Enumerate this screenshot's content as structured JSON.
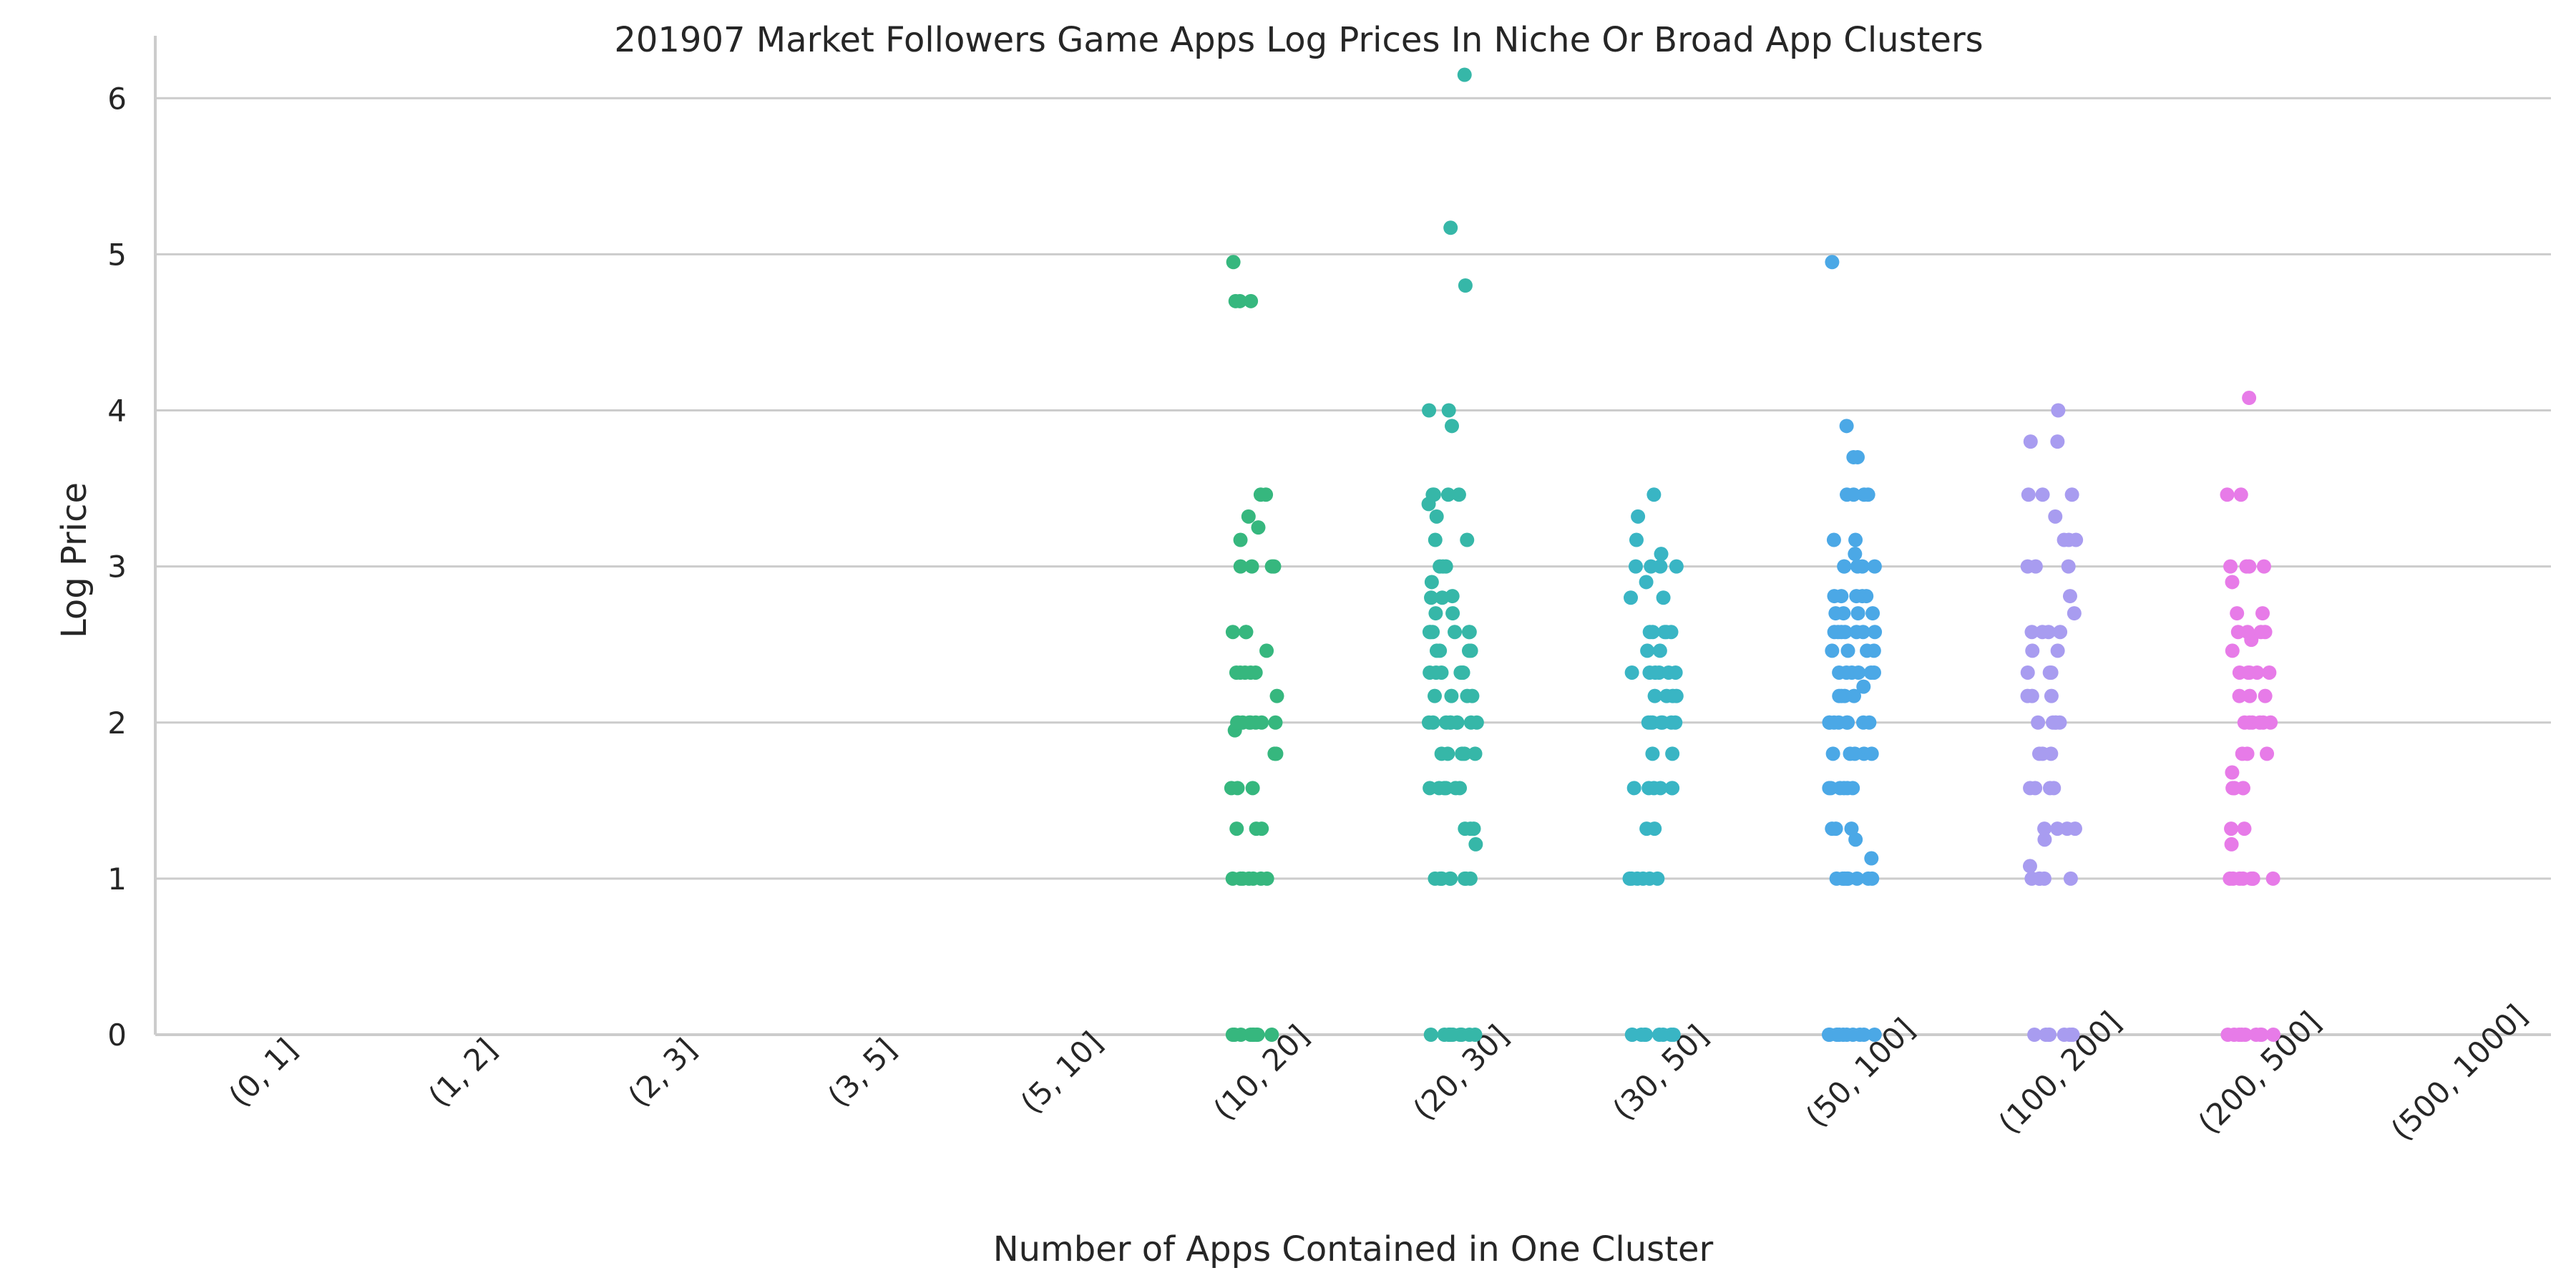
{
  "chart_data": {
    "type": "scatter",
    "title": "201907 Market Followers Game Apps Log Prices In Niche Or Broad App Clusters",
    "xlabel": "Number of Apps Contained in One Cluster",
    "ylabel": "Log Price",
    "categories": [
      "(0, 1]",
      "(1, 2]",
      "(2, 3]",
      "(3, 5]",
      "(5, 10]",
      "(10, 20]",
      "(20, 30]",
      "(30, 50]",
      "(50, 100]",
      "(100, 200]",
      "(200, 500]",
      "(500, 1000]"
    ],
    "ylim": [
      0,
      6.4
    ],
    "yticks": [
      0,
      1,
      2,
      3,
      4,
      5,
      6
    ],
    "grid": "horizontal",
    "series": [
      {
        "category": "(10, 20]",
        "color": "#36b77e",
        "values": [
          0,
          0,
          0,
          0,
          0,
          0,
          0,
          0,
          0,
          1,
          1,
          1,
          1,
          1,
          1,
          1,
          1.32,
          1.32,
          1.32,
          1.58,
          1.58,
          1.58,
          1.8,
          1.8,
          1.95,
          2,
          2,
          2,
          2,
          2,
          2,
          2,
          2,
          2.17,
          2.32,
          2.32,
          2.32,
          2.32,
          2.32,
          2.46,
          2.58,
          2.58,
          2.58,
          3,
          3,
          3,
          3,
          3.17,
          3.25,
          3.32,
          3.46,
          3.46,
          4.7,
          4.7,
          4.7,
          4.95
        ]
      },
      {
        "category": "(20, 30]",
        "color": "#36b7a8",
        "values": [
          0,
          0,
          0,
          0,
          0,
          0,
          0,
          0,
          0,
          0,
          1,
          1,
          1,
          1,
          1,
          1,
          1,
          1,
          1,
          1.22,
          1.32,
          1.32,
          1.32,
          1.58,
          1.58,
          1.58,
          1.58,
          1.58,
          1.58,
          1.8,
          1.8,
          1.8,
          1.8,
          1.8,
          2,
          2,
          2,
          2,
          2,
          2,
          2,
          2,
          2,
          2.17,
          2.17,
          2.17,
          2.17,
          2.32,
          2.32,
          2.32,
          2.32,
          2.32,
          2.32,
          2.46,
          2.46,
          2.46,
          2.46,
          2.58,
          2.58,
          2.58,
          2.58,
          2.58,
          2.58,
          2.7,
          2.7,
          2.8,
          2.8,
          2.81,
          2.9,
          3,
          3,
          3,
          3.17,
          3.17,
          3.32,
          3.4,
          3.46,
          3.46,
          3.46,
          3.46,
          3.9,
          4,
          4,
          4.8,
          5.17,
          6.15
        ]
      },
      {
        "category": "(30, 50]",
        "color": "#39b5c4",
        "values": [
          0,
          0,
          0,
          0,
          0,
          0,
          0,
          0,
          0,
          1,
          1,
          1,
          1,
          1,
          1,
          1.32,
          1.32,
          1.58,
          1.58,
          1.58,
          1.58,
          1.58,
          1.58,
          1.8,
          1.8,
          2,
          2,
          2,
          2,
          2,
          2,
          2,
          2.17,
          2.17,
          2.17,
          2.17,
          2.32,
          2.32,
          2.32,
          2.32,
          2.32,
          2.32,
          2.46,
          2.46,
          2.58,
          2.58,
          2.58,
          2.58,
          2.58,
          2.8,
          2.8,
          2.9,
          3,
          3,
          3,
          3,
          3.08,
          3.17,
          3.32,
          3.46
        ]
      },
      {
        "category": "(50, 100]",
        "color": "#4ba8e6",
        "values": [
          0,
          0,
          0,
          0,
          0,
          0,
          0,
          0,
          0,
          0,
          1,
          1,
          1,
          1,
          1,
          1,
          1,
          1,
          1.13,
          1.25,
          1.32,
          1.32,
          1.32,
          1.58,
          1.58,
          1.58,
          1.58,
          1.58,
          1.58,
          1.8,
          1.8,
          1.8,
          1.8,
          1.8,
          2,
          2,
          2,
          2,
          2,
          2,
          2,
          2,
          2.17,
          2.17,
          2.17,
          2.17,
          2.23,
          2.32,
          2.32,
          2.32,
          2.32,
          2.32,
          2.32,
          2.46,
          2.46,
          2.46,
          2.46,
          2.58,
          2.58,
          2.58,
          2.58,
          2.58,
          2.58,
          2.58,
          2.7,
          2.7,
          2.7,
          2.7,
          2.81,
          2.81,
          2.81,
          2.81,
          2.81,
          3,
          3,
          3,
          3,
          3,
          3.08,
          3.17,
          3.17,
          3.46,
          3.46,
          3.46,
          3.46,
          3.7,
          3.7,
          3.9,
          4.95
        ]
      },
      {
        "category": "(100, 200]",
        "color": "#a89cf0",
        "values": [
          0,
          0,
          0,
          0,
          0,
          0,
          0,
          0,
          1,
          1,
          1,
          1,
          1,
          1.08,
          1.25,
          1.32,
          1.32,
          1.32,
          1.32,
          1.58,
          1.58,
          1.58,
          1.58,
          1.8,
          1.8,
          1.8,
          2,
          2,
          2,
          2,
          2,
          2.17,
          2.17,
          2.17,
          2.32,
          2.32,
          2.32,
          2.46,
          2.46,
          2.58,
          2.58,
          2.58,
          2.58,
          2.7,
          2.81,
          3,
          3,
          3,
          3.17,
          3.17,
          3.17,
          3.32,
          3.46,
          3.46,
          3.46,
          3.8,
          3.8,
          4
        ]
      },
      {
        "category": "(200, 500]",
        "color": "#e77be8",
        "values": [
          0,
          0,
          0,
          0,
          0,
          0,
          0,
          0,
          0,
          1,
          1,
          1,
          1,
          1,
          1,
          1,
          1,
          1.22,
          1.32,
          1.32,
          1.58,
          1.58,
          1.58,
          1.58,
          1.58,
          1.68,
          1.8,
          1.8,
          1.8,
          2,
          2,
          2,
          2,
          2,
          2,
          2.17,
          2.17,
          2.17,
          2.32,
          2.32,
          2.32,
          2.32,
          2.32,
          2.46,
          2.53,
          2.58,
          2.58,
          2.58,
          2.58,
          2.7,
          2.7,
          2.9,
          3,
          3,
          3,
          3,
          3.46,
          3.46,
          4.08
        ]
      }
    ]
  }
}
